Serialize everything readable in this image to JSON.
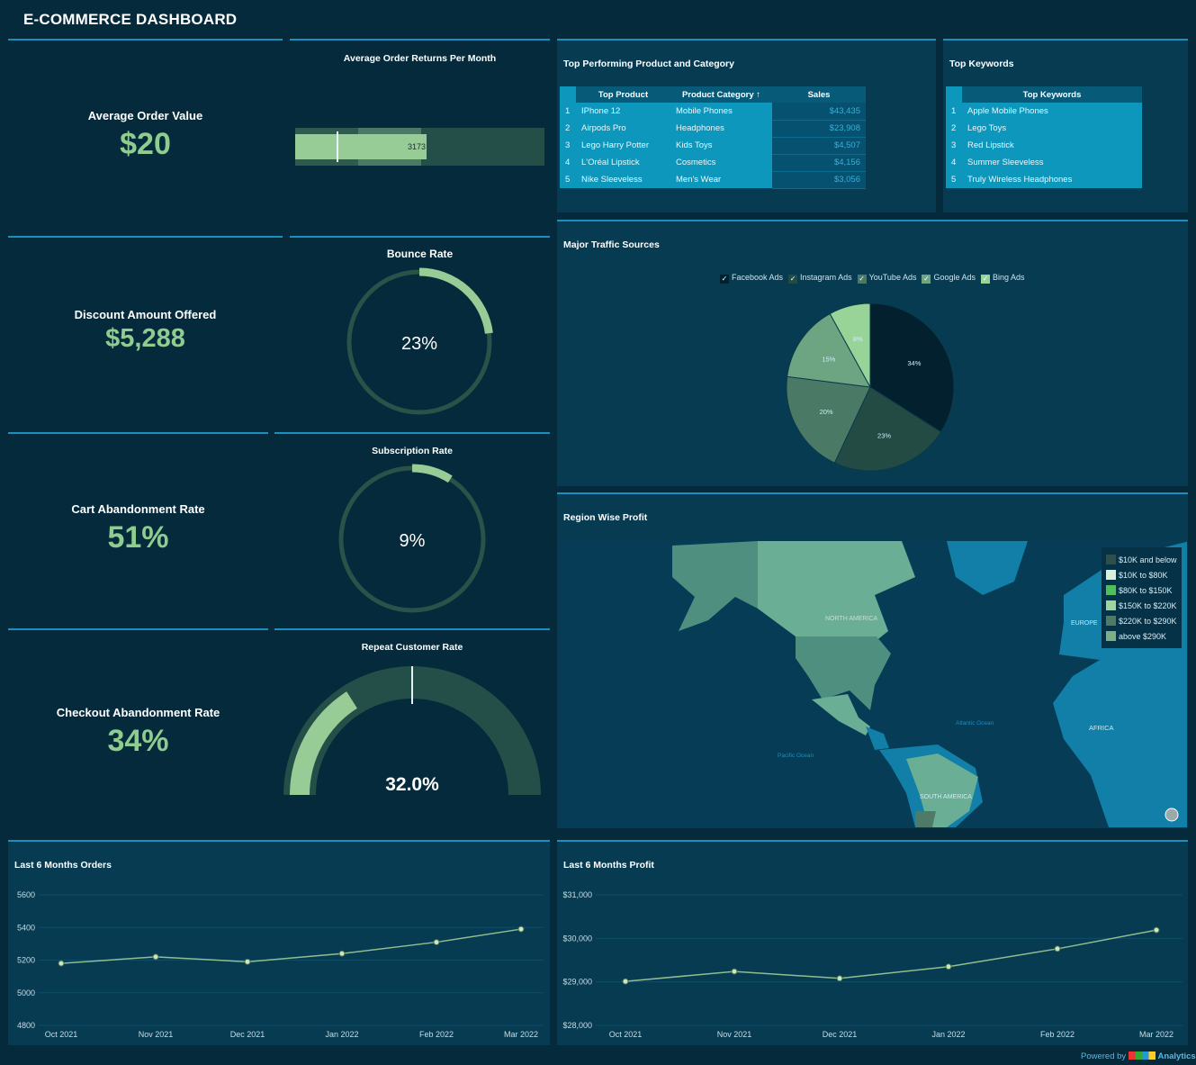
{
  "header": {
    "title": "E-COMMERCE DASHBOARD"
  },
  "kpis": [
    {
      "label": "Average Order Value",
      "value": "$20"
    },
    {
      "label": "Discount Amount Offered",
      "value": "$5,288"
    },
    {
      "label": "Cart Abandonment Rate",
      "value": "51%"
    },
    {
      "label": "Checkout Abandonment Rate",
      "value": "34%"
    }
  ],
  "returns": {
    "title": "Average Order Returns Per Month",
    "value": "3173",
    "value_num": 3173
  },
  "bounce": {
    "title": "Bounce Rate",
    "label": "23%",
    "value": 23
  },
  "subscription": {
    "title": "Subscription Rate",
    "label": "9%",
    "value": 9
  },
  "repeat": {
    "title": "Repeat Customer Rate",
    "label": "32.0%",
    "value": 32.0
  },
  "top_products": {
    "title": "Top Performing Product and Category",
    "headers": [
      "Top Product",
      "Product Category",
      "Sales"
    ],
    "sort_icon": "arrow-up-icon",
    "rows": [
      {
        "n": "1",
        "product": "IPhone 12",
        "category": "Mobile Phones",
        "sales": "$43,435"
      },
      {
        "n": "2",
        "product": "Airpods Pro",
        "category": "Headphones",
        "sales": "$23,908"
      },
      {
        "n": "3",
        "product": "Lego Harry Potter",
        "category": "Kids Toys",
        "sales": "$4,507"
      },
      {
        "n": "4",
        "product": "L'Oréal Lipstick",
        "category": "Cosmetics",
        "sales": "$4,156"
      },
      {
        "n": "5",
        "product": "Nike Sleeveless",
        "category": "Men's Wear",
        "sales": "$3,056"
      }
    ]
  },
  "top_keywords": {
    "title": "Top Keywords",
    "header": "Top Keywords",
    "rows": [
      {
        "n": "1",
        "kw": "Apple Mobile Phones"
      },
      {
        "n": "2",
        "kw": "Lego Toys"
      },
      {
        "n": "3",
        "kw": "Red Lipstick"
      },
      {
        "n": "4",
        "kw": "Summer Sleeveless"
      },
      {
        "n": "5",
        "kw": "Truly Wireless Headphones"
      }
    ]
  },
  "traffic": {
    "title": "Major Traffic Sources"
  },
  "region": {
    "title": "Region Wise Profit",
    "labels": {
      "na": "NORTH AMERICA",
      "sa": "SOUTH AMERICA",
      "eu": "EUROPE",
      "af": "AFRICA",
      "atl": "Atlantic Ocean",
      "pac": "Pacific Ocean"
    },
    "legend": [
      {
        "label": "$10K and below",
        "color": "#2f4f48"
      },
      {
        "label": "$10K to $80K",
        "color": "#d9f0d9"
      },
      {
        "label": "$80K to $150K",
        "color": "#4fbf5a"
      },
      {
        "label": "$150K to $220K",
        "color": "#9fd49f"
      },
      {
        "label": "$220K to $290K",
        "color": "#4f7a68"
      },
      {
        "label": "above $290K",
        "color": "#7fae86"
      }
    ]
  },
  "footer": {
    "powered": "Powered by",
    "brand": "Analytics"
  },
  "chart_data": [
    {
      "type": "pie",
      "title": "Major Traffic Sources",
      "legend_position": "top",
      "categories": [
        "Facebook Ads",
        "Instagram Ads",
        "YouTube Ads",
        "Google Ads",
        "Bing Ads"
      ],
      "values": [
        34,
        23,
        20,
        15,
        8
      ],
      "labels": [
        "34%",
        "23%",
        "20%",
        "15%",
        "8%"
      ],
      "colors": [
        "#03202f",
        "#244a44",
        "#4a7a66",
        "#6da583",
        "#98d498"
      ]
    },
    {
      "type": "line",
      "title": "Last 6 Months Orders",
      "categories": [
        "Oct 2021",
        "Nov 2021",
        "Dec 2021",
        "Jan 2022",
        "Feb 2022",
        "Mar 2022"
      ],
      "values": [
        5180,
        5220,
        5190,
        5240,
        5310,
        5390
      ],
      "ylim": [
        4800,
        5600
      ],
      "yticks": [
        "5600",
        "5400",
        "5200",
        "5000",
        "4800"
      ],
      "grid": true
    },
    {
      "type": "line",
      "title": "Last 6 Months Profit",
      "categories": [
        "Oct 2021",
        "Nov 2021",
        "Dec 2021",
        "Jan 2022",
        "Feb 2022",
        "Mar 2022"
      ],
      "values": [
        29010,
        29240,
        29080,
        29350,
        29760,
        30190
      ],
      "ylim": [
        28000,
        31000
      ],
      "yticks": [
        "$31,000",
        "$30,000",
        "$29,000",
        "$28,000"
      ],
      "grid": true
    }
  ]
}
